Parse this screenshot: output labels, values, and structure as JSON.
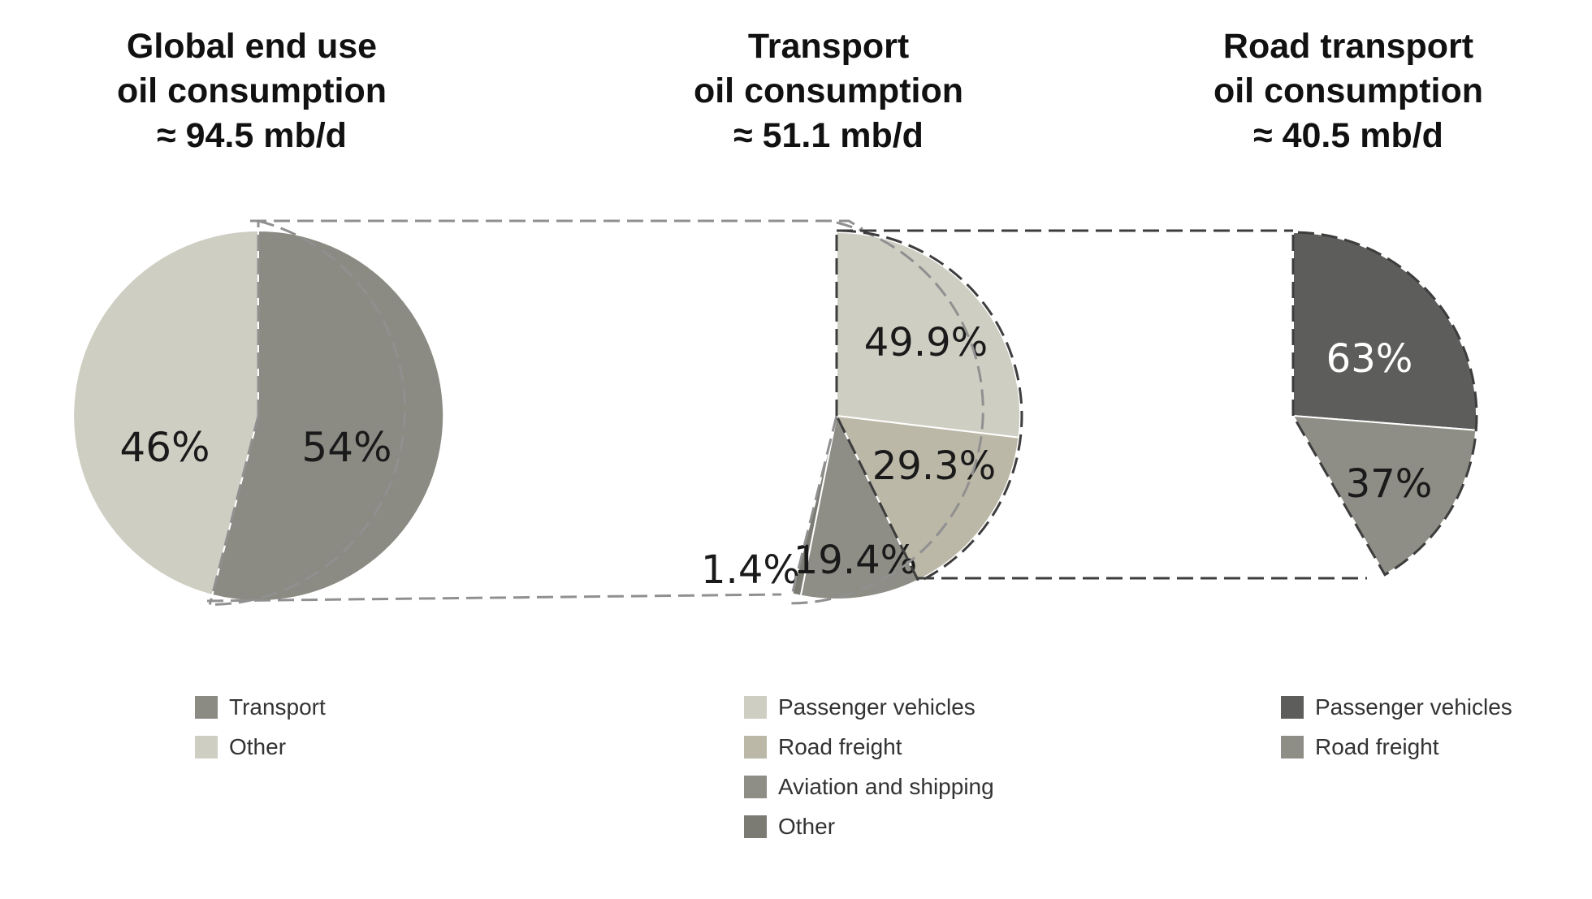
{
  "chart_data": [
    {
      "type": "pie",
      "title": [
        "Global end use",
        "oil consumption",
        "≈ 94.5 mb/d"
      ],
      "slices": [
        {
          "name": "Transport",
          "value": 54,
          "label": "54%",
          "color": "#8b8b83"
        },
        {
          "name": "Other",
          "value": 46,
          "label": "46%",
          "color": "#cfcec3"
        }
      ],
      "legend": [
        {
          "label": "Transport",
          "color": "#8b8b83"
        },
        {
          "label": "Other",
          "color": "#cfcec3"
        }
      ]
    },
    {
      "type": "pie",
      "title": [
        "Transport",
        "oil consumption",
        "≈ 51.1 mb/d"
      ],
      "slices": [
        {
          "name": "Passenger vehicles",
          "value": 49.9,
          "label": "49.9%",
          "color": "#cfcec3"
        },
        {
          "name": "Road freight",
          "value": 29.3,
          "label": "29.3%",
          "color": "#bcb8a8"
        },
        {
          "name": "Aviation and shipping",
          "value": 19.4,
          "label": "19.4%",
          "color": "#8e8e86"
        },
        {
          "name": "Other",
          "value": 1.4,
          "label": "1.4%",
          "color": "#7b7b73"
        }
      ],
      "legend": [
        {
          "label": "Passenger vehicles",
          "color": "#cfcec3"
        },
        {
          "label": "Road freight",
          "color": "#bcb8a8"
        },
        {
          "label": "Aviation and shipping",
          "color": "#8e8e86"
        },
        {
          "label": "Other",
          "color": "#7b7b73"
        }
      ]
    },
    {
      "type": "pie",
      "title": [
        "Road transport",
        "oil consumption",
        "≈ 40.5 mb/d"
      ],
      "slices": [
        {
          "name": "Passenger vehicles",
          "value": 63,
          "label": "63%",
          "color": "#5d5d5b",
          "text_color": "#ffffff"
        },
        {
          "name": "Road freight",
          "value": 37,
          "label": "37%",
          "color": "#8e8e86"
        }
      ],
      "legend": [
        {
          "label": "Passenger vehicles",
          "color": "#5d5d5b"
        },
        {
          "label": "Road freight",
          "color": "#8e8e86"
        }
      ]
    }
  ]
}
